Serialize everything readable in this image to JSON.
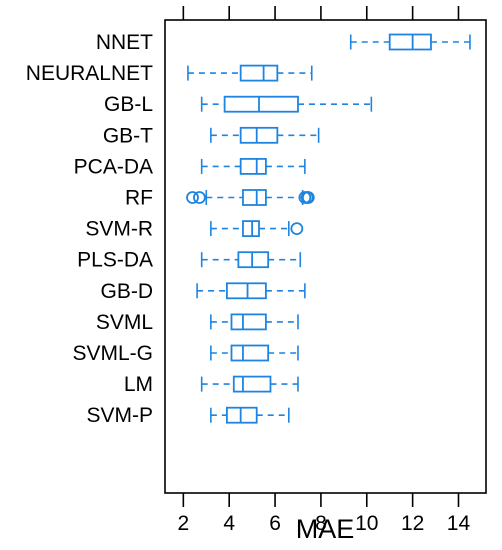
{
  "chart_data": {
    "type": "boxplot",
    "orientation": "horizontal",
    "xlabel": "MAE",
    "xlim": [
      1.2,
      15.2
    ],
    "xticks": [
      2,
      4,
      6,
      8,
      10,
      12,
      14
    ],
    "grid": false,
    "color": "#1f84e0",
    "series": [
      {
        "name": "NNET",
        "min": 9.3,
        "q1": 11.0,
        "median": 12.0,
        "q3": 12.8,
        "max": 14.5,
        "outliers": []
      },
      {
        "name": "NEURALNET",
        "min": 2.2,
        "q1": 4.5,
        "median": 5.5,
        "q3": 6.1,
        "max": 7.6,
        "outliers": []
      },
      {
        "name": "GB-L",
        "min": 2.8,
        "q1": 3.8,
        "median": 5.3,
        "q3": 7.0,
        "max": 10.2,
        "outliers": []
      },
      {
        "name": "GB-T",
        "min": 3.2,
        "q1": 4.5,
        "median": 5.2,
        "q3": 6.1,
        "max": 7.9,
        "outliers": []
      },
      {
        "name": "PCA-DA",
        "min": 2.8,
        "q1": 4.5,
        "median": 5.2,
        "q3": 5.6,
        "max": 7.3,
        "outliers": []
      },
      {
        "name": "RF",
        "min": 3.0,
        "q1": 4.6,
        "median": 5.2,
        "q3": 5.6,
        "max": 7.2,
        "outliers": [
          2.4,
          2.7,
          7.3,
          7.4,
          7.45
        ]
      },
      {
        "name": "SVM-R",
        "min": 3.2,
        "q1": 4.6,
        "median": 5.0,
        "q3": 5.3,
        "max": 6.6,
        "outliers": [
          6.95
        ]
      },
      {
        "name": "PLS-DA",
        "min": 2.8,
        "q1": 4.4,
        "median": 5.0,
        "q3": 5.7,
        "max": 7.1,
        "outliers": []
      },
      {
        "name": "GB-D",
        "min": 2.6,
        "q1": 3.9,
        "median": 4.8,
        "q3": 5.6,
        "max": 7.3,
        "outliers": []
      },
      {
        "name": "SVML",
        "min": 3.2,
        "q1": 4.1,
        "median": 4.6,
        "q3": 5.6,
        "max": 7.0,
        "outliers": []
      },
      {
        "name": "SVML-G",
        "min": 3.2,
        "q1": 4.1,
        "median": 4.6,
        "q3": 5.7,
        "max": 7.0,
        "outliers": []
      },
      {
        "name": "LM",
        "min": 2.8,
        "q1": 4.2,
        "median": 4.6,
        "q3": 5.8,
        "max": 7.0,
        "outliers": []
      },
      {
        "name": "SVM-P",
        "min": 3.2,
        "q1": 3.9,
        "median": 4.5,
        "q3": 5.2,
        "max": 6.6,
        "outliers": []
      }
    ]
  }
}
